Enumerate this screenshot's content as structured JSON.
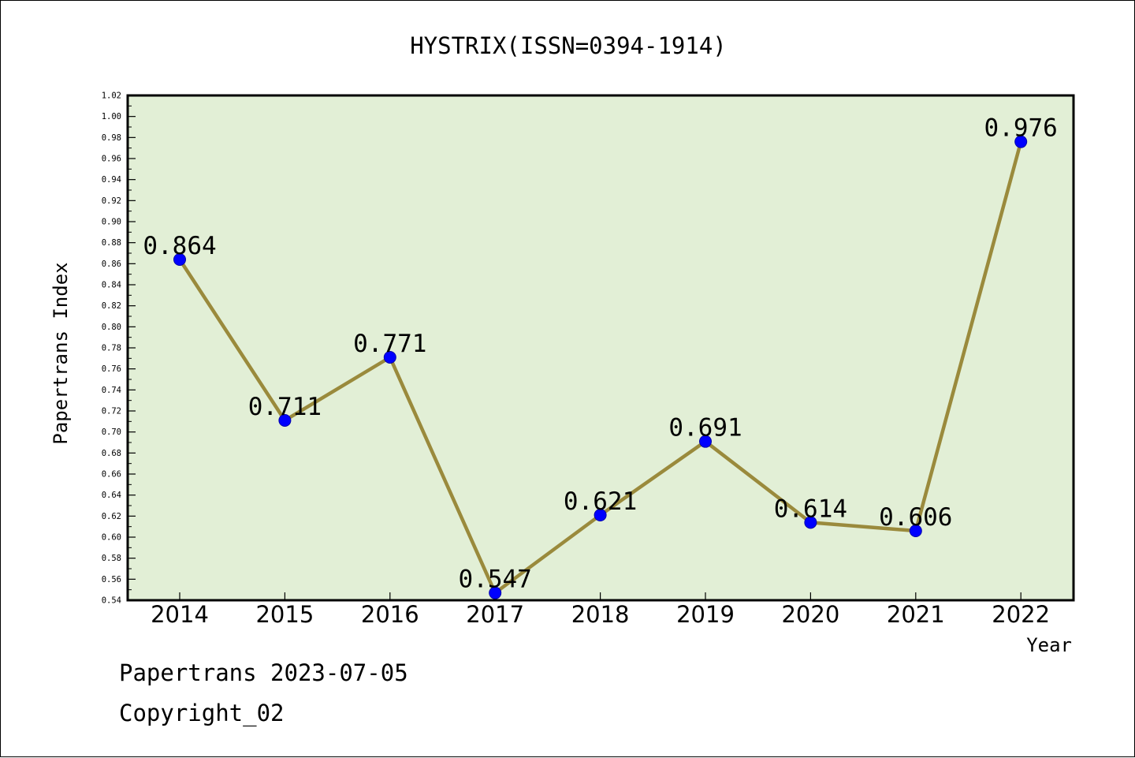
{
  "chart_data": {
    "type": "line",
    "title": "HYSTRIX(ISSN=0394-1914)",
    "xlabel": "Year",
    "ylabel": "Papertrans Index",
    "categories": [
      "2014",
      "2015",
      "2016",
      "2017",
      "2018",
      "2019",
      "2020",
      "2021",
      "2022"
    ],
    "series": [
      {
        "values": [
          0.864,
          0.711,
          0.771,
          0.547,
          0.621,
          0.691,
          0.614,
          0.606,
          0.976
        ]
      }
    ],
    "data_labels": [
      "0.864",
      "0.711",
      "0.771",
      "0.547",
      "0.621",
      "0.691",
      "0.614",
      "0.606",
      "0.976"
    ],
    "ylim": [
      0.54,
      1.02
    ],
    "yticks": [
      "0.54",
      "0.56",
      "0.58",
      "0.60",
      "0.62",
      "0.64",
      "0.66",
      "0.68",
      "0.70",
      "0.72",
      "0.74",
      "0.76",
      "0.78",
      "0.80",
      "0.82",
      "0.84",
      "0.86",
      "0.88",
      "0.90",
      "0.92",
      "0.94",
      "0.96",
      "0.98",
      "1.00",
      "1.02"
    ],
    "grid": false,
    "colors": {
      "plot_background": "#e2efd6",
      "line": "#9a8a3c",
      "marker": "#0000ff",
      "frame": "#000000"
    }
  },
  "footer": {
    "line1": "Papertrans 2023-07-05",
    "line2": "Copyright_02"
  }
}
